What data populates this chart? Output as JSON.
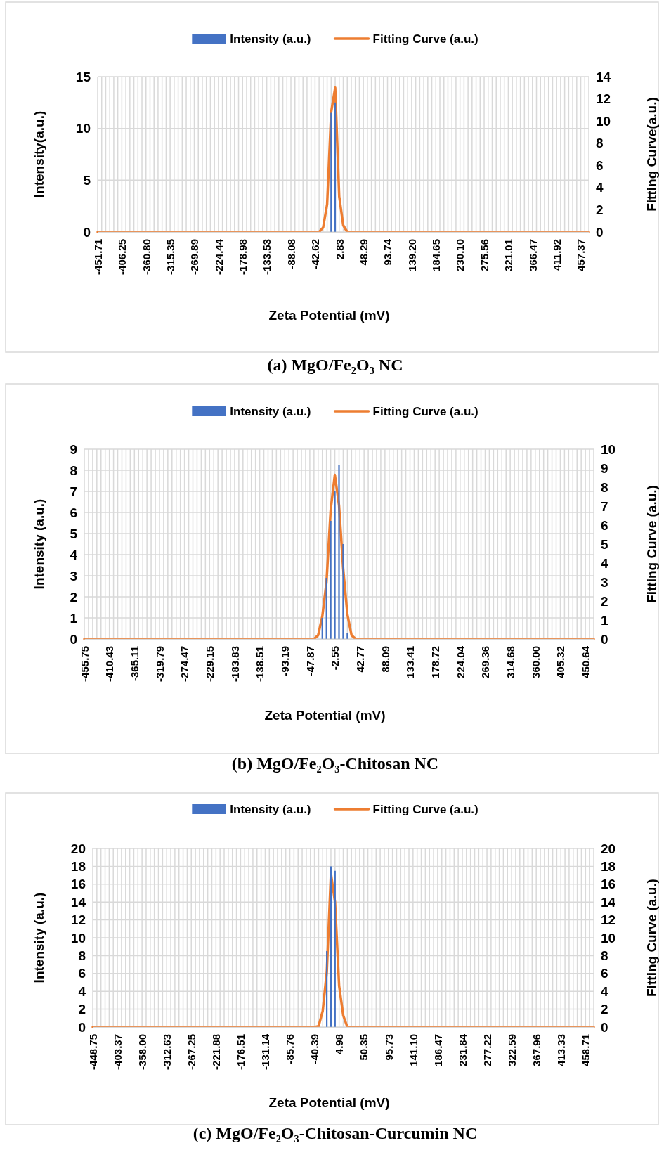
{
  "chart_data": [
    {
      "type": "bar",
      "title": "(a) MgO/Fe₂O₃ NC",
      "xlabel": "Zeta Potential (mV)",
      "ylabel": "Intensity(a.u.)",
      "y2label": "Fitting Curve(a.u.)",
      "categories": [
        "-451.71",
        null,
        null,
        null,
        null,
        null,
        "-406.25",
        null,
        null,
        null,
        null,
        null,
        "-360.80",
        null,
        null,
        null,
        null,
        null,
        "-315.35",
        null,
        null,
        null,
        null,
        null,
        "-269.89",
        null,
        null,
        null,
        null,
        null,
        "-224.44",
        null,
        null,
        null,
        null,
        null,
        "-178.98",
        null,
        null,
        null,
        null,
        null,
        "-133.53",
        null,
        null,
        null,
        null,
        null,
        "-88.08",
        null,
        null,
        null,
        null,
        null,
        "-42.62",
        null,
        null,
        null,
        null,
        null,
        "2.83",
        null,
        null,
        null,
        null,
        null,
        "48.29",
        null,
        null,
        null,
        null,
        null,
        "93.74",
        null,
        null,
        null,
        null,
        null,
        "139.20",
        null,
        null,
        null,
        null,
        null,
        "184.65",
        null,
        null,
        null,
        null,
        null,
        "230.10",
        null,
        null,
        null,
        null,
        null,
        "275.56",
        null,
        null,
        null,
        null,
        null,
        "321.01",
        null,
        null,
        null,
        null,
        null,
        "366.47",
        null,
        null,
        null,
        null,
        null,
        "411.92",
        null,
        null,
        null,
        null,
        null,
        "457.37",
        null,
        null
      ],
      "series": [
        {
          "name": "Intensity (a.u.)",
          "color": "#4472c4",
          "values": [
            0,
            0,
            0,
            0,
            0,
            0,
            0,
            0,
            0,
            0,
            0,
            0,
            0,
            0,
            0,
            0,
            0,
            0,
            0,
            0,
            0,
            0,
            0,
            0,
            0,
            0,
            0,
            0,
            0,
            0,
            0,
            0,
            0,
            0,
            0,
            0,
            0,
            0,
            0,
            0,
            0,
            0,
            0,
            0,
            0,
            0,
            0,
            0,
            0,
            0,
            0,
            0,
            0,
            0,
            0,
            0,
            0,
            0,
            11.5,
            12.5,
            0,
            0,
            0,
            0,
            0,
            0,
            0,
            0,
            0,
            0,
            0,
            0,
            0,
            0,
            0,
            0,
            0,
            0,
            0,
            0,
            0,
            0,
            0,
            0,
            0,
            0,
            0,
            0,
            0,
            0,
            0,
            0,
            0,
            0,
            0,
            0,
            0,
            0,
            0,
            0,
            0,
            0,
            0,
            0,
            0,
            0,
            0,
            0,
            0,
            0,
            0,
            0,
            0,
            0,
            0,
            0,
            0,
            0,
            0,
            0,
            0,
            0,
            0
          ]
        },
        {
          "name": "Fitting Curve (a.u.)",
          "type": "line",
          "axis": "y2",
          "color": "#ed7d31",
          "values": [
            0,
            0,
            0,
            0,
            0,
            0,
            0,
            0,
            0,
            0,
            0,
            0,
            0,
            0,
            0,
            0,
            0,
            0,
            0,
            0,
            0,
            0,
            0,
            0,
            0,
            0,
            0,
            0,
            0,
            0,
            0,
            0,
            0,
            0,
            0,
            0,
            0,
            0,
            0,
            0,
            0,
            0,
            0,
            0,
            0,
            0,
            0,
            0,
            0,
            0,
            0,
            0,
            0,
            0,
            0,
            0,
            0.4,
            2.5,
            10.8,
            13,
            3.2,
            0.6,
            0,
            0,
            0,
            0,
            0,
            0,
            0,
            0,
            0,
            0,
            0,
            0,
            0,
            0,
            0,
            0,
            0,
            0,
            0,
            0,
            0,
            0,
            0,
            0,
            0,
            0,
            0,
            0,
            0,
            0,
            0,
            0,
            0,
            0,
            0,
            0,
            0,
            0,
            0,
            0,
            0,
            0,
            0,
            0,
            0,
            0,
            0,
            0,
            0,
            0,
            0,
            0,
            0,
            0,
            0,
            0,
            0,
            0,
            0,
            0,
            0
          ]
        }
      ],
      "ylim": [
        0,
        15
      ],
      "yticks": [
        0,
        5,
        10,
        15
      ],
      "y2lim": [
        0,
        14
      ],
      "y2ticks": [
        0,
        2,
        4,
        6,
        8,
        10,
        12,
        14
      ],
      "grid": true,
      "legend": "top"
    },
    {
      "type": "bar",
      "title": "(b) MgO/Fe₂O₃-Chitosan NC",
      "xlabel": "Zeta Potential (mV)",
      "ylabel": "Intensity (a.u.)",
      "y2label": "Fitting Curve (a.u.)",
      "categories": [
        "-455.75",
        null,
        null,
        null,
        null,
        null,
        "-410.43",
        null,
        null,
        null,
        null,
        null,
        "-365.11",
        null,
        null,
        null,
        null,
        null,
        "-319.79",
        null,
        null,
        null,
        null,
        null,
        "-274.47",
        null,
        null,
        null,
        null,
        null,
        "-229.15",
        null,
        null,
        null,
        null,
        null,
        "-183.83",
        null,
        null,
        null,
        null,
        null,
        "-138.51",
        null,
        null,
        null,
        null,
        null,
        "-93.19",
        null,
        null,
        null,
        null,
        null,
        "-47.87",
        null,
        null,
        null,
        null,
        null,
        "-2.55",
        null,
        null,
        null,
        null,
        null,
        "42.77",
        null,
        null,
        null,
        null,
        null,
        "88.09",
        null,
        null,
        null,
        null,
        null,
        "133.41",
        null,
        null,
        null,
        null,
        null,
        "178.72",
        null,
        null,
        null,
        null,
        null,
        "224.04",
        null,
        null,
        null,
        null,
        null,
        "269.36",
        null,
        null,
        null,
        null,
        null,
        "314.68",
        null,
        null,
        null,
        null,
        null,
        "360.00",
        null,
        null,
        null,
        null,
        null,
        "405.32",
        null,
        null,
        null,
        null,
        null,
        "450.64",
        null,
        null
      ],
      "series": [
        {
          "name": "Intensity (a.u.)",
          "color": "#4472c4",
          "values": [
            0,
            0,
            0,
            0,
            0,
            0,
            0,
            0,
            0,
            0,
            0,
            0,
            0,
            0,
            0,
            0,
            0,
            0,
            0,
            0,
            0,
            0,
            0,
            0,
            0,
            0,
            0,
            0,
            0,
            0,
            0,
            0,
            0,
            0,
            0,
            0,
            0,
            0,
            0,
            0,
            0,
            0,
            0,
            0,
            0,
            0,
            0,
            0,
            0,
            0,
            0,
            0,
            0,
            0,
            0,
            0,
            0,
            1,
            2.9,
            5.6,
            7,
            8.25,
            4.5,
            0.3,
            0,
            0,
            0,
            0,
            0,
            0,
            0,
            0,
            0,
            0,
            0,
            0,
            0,
            0,
            0,
            0,
            0,
            0,
            0,
            0,
            0,
            0,
            0,
            0,
            0,
            0,
            0,
            0,
            0,
            0,
            0,
            0,
            0,
            0,
            0,
            0,
            0,
            0,
            0,
            0,
            0,
            0,
            0,
            0,
            0,
            0,
            0,
            0,
            0,
            0,
            0,
            0,
            0,
            0,
            0,
            0,
            0,
            0,
            0
          ]
        },
        {
          "name": "Fitting Curve (a.u.)",
          "type": "line",
          "axis": "y2",
          "color": "#ed7d31",
          "values": [
            0,
            0,
            0,
            0,
            0,
            0,
            0,
            0,
            0,
            0,
            0,
            0,
            0,
            0,
            0,
            0,
            0,
            0,
            0,
            0,
            0,
            0,
            0,
            0,
            0,
            0,
            0,
            0,
            0,
            0,
            0,
            0,
            0,
            0,
            0,
            0,
            0,
            0,
            0,
            0,
            0,
            0,
            0,
            0,
            0,
            0,
            0,
            0,
            0,
            0,
            0,
            0,
            0,
            0,
            0,
            0,
            0.2,
            1.2,
            3,
            6.8,
            8.65,
            7.05,
            3.7,
            1.3,
            0.2,
            0,
            0,
            0,
            0,
            0,
            0,
            0,
            0,
            0,
            0,
            0,
            0,
            0,
            0,
            0,
            0,
            0,
            0,
            0,
            0,
            0,
            0,
            0,
            0,
            0,
            0,
            0,
            0,
            0,
            0,
            0,
            0,
            0,
            0,
            0,
            0,
            0,
            0,
            0,
            0,
            0,
            0,
            0,
            0,
            0,
            0,
            0,
            0,
            0,
            0,
            0,
            0,
            0,
            0,
            0,
            0,
            0,
            0
          ]
        }
      ],
      "ylim": [
        0,
        9
      ],
      "yticks": [
        0,
        1,
        2,
        3,
        4,
        5,
        6,
        7,
        8,
        9
      ],
      "y2lim": [
        0,
        10
      ],
      "y2ticks": [
        0,
        1,
        2,
        3,
        4,
        5,
        6,
        7,
        8,
        9,
        10
      ],
      "grid": true,
      "legend": "top"
    },
    {
      "type": "bar",
      "title": "(c) MgO/Fe₂O₃-Chitosan-Curcumin NC",
      "xlabel": "Zeta Potential (mV)",
      "ylabel": "Intensity (a.u.)",
      "y2label": "Fitting Curve (a.u.)",
      "categories": [
        "-448.75",
        null,
        null,
        null,
        null,
        null,
        "-403.37",
        null,
        null,
        null,
        null,
        null,
        "-358.00",
        null,
        null,
        null,
        null,
        null,
        "-312.63",
        null,
        null,
        null,
        null,
        null,
        "-267.25",
        null,
        null,
        null,
        null,
        null,
        "-221.88",
        null,
        null,
        null,
        null,
        null,
        "-176.51",
        null,
        null,
        null,
        null,
        null,
        "-131.14",
        null,
        null,
        null,
        null,
        null,
        "-85.76",
        null,
        null,
        null,
        null,
        null,
        "-40.39",
        null,
        null,
        null,
        null,
        null,
        "4.98",
        null,
        null,
        null,
        null,
        null,
        "50.35",
        null,
        null,
        null,
        null,
        null,
        "95.73",
        null,
        null,
        null,
        null,
        null,
        "141.10",
        null,
        null,
        null,
        null,
        null,
        "186.47",
        null,
        null,
        null,
        null,
        null,
        "231.84",
        null,
        null,
        null,
        null,
        null,
        "277.22",
        null,
        null,
        null,
        null,
        null,
        "322.59",
        null,
        null,
        null,
        null,
        null,
        "367.96",
        null,
        null,
        null,
        null,
        null,
        "413.33",
        null,
        null,
        null,
        null,
        null,
        "458.71",
        null,
        null
      ],
      "series": [
        {
          "name": "Intensity (a.u.)",
          "color": "#4472c4",
          "values": [
            0,
            0,
            0,
            0,
            0,
            0,
            0,
            0,
            0,
            0,
            0,
            0,
            0,
            0,
            0,
            0,
            0,
            0,
            0,
            0,
            0,
            0,
            0,
            0,
            0,
            0,
            0,
            0,
            0,
            0,
            0,
            0,
            0,
            0,
            0,
            0,
            0,
            0,
            0,
            0,
            0,
            0,
            0,
            0,
            0,
            0,
            0,
            0,
            0,
            0,
            0,
            0,
            0,
            0,
            0,
            0,
            0,
            8.5,
            18,
            17.5,
            0,
            0,
            0,
            0,
            0,
            0,
            0,
            0,
            0,
            0,
            0,
            0,
            0,
            0,
            0,
            0,
            0,
            0,
            0,
            0,
            0,
            0,
            0,
            0,
            0,
            0,
            0,
            0,
            0,
            0,
            0,
            0,
            0,
            0,
            0,
            0,
            0,
            0,
            0,
            0,
            0,
            0,
            0,
            0,
            0,
            0,
            0,
            0,
            0,
            0,
            0,
            0,
            0,
            0,
            0,
            0,
            0,
            0,
            0,
            0,
            0,
            0,
            0
          ]
        },
        {
          "name": "Fitting Curve (a.u.)",
          "type": "line",
          "axis": "y2",
          "color": "#ed7d31",
          "values": [
            0,
            0,
            0,
            0,
            0,
            0,
            0,
            0,
            0,
            0,
            0,
            0,
            0,
            0,
            0,
            0,
            0,
            0,
            0,
            0,
            0,
            0,
            0,
            0,
            0,
            0,
            0,
            0,
            0,
            0,
            0,
            0,
            0,
            0,
            0,
            0,
            0,
            0,
            0,
            0,
            0,
            0,
            0,
            0,
            0,
            0,
            0,
            0,
            0,
            0,
            0,
            0,
            0,
            0,
            0,
            0.1,
            1.8,
            6.2,
            17.2,
            14,
            4.6,
            1.3,
            0,
            0,
            0,
            0,
            0,
            0,
            0,
            0,
            0,
            0,
            0,
            0,
            0,
            0,
            0,
            0,
            0,
            0,
            0,
            0,
            0,
            0,
            0,
            0,
            0,
            0,
            0,
            0,
            0,
            0,
            0,
            0,
            0,
            0,
            0,
            0,
            0,
            0,
            0,
            0,
            0,
            0,
            0,
            0,
            0,
            0,
            0,
            0,
            0,
            0,
            0,
            0,
            0,
            0,
            0,
            0,
            0,
            0,
            0,
            0,
            0
          ]
        }
      ],
      "ylim": [
        0,
        20
      ],
      "yticks": [
        0,
        2,
        4,
        6,
        8,
        10,
        12,
        14,
        16,
        18,
        20
      ],
      "y2lim": [
        0,
        20
      ],
      "y2ticks": [
        0,
        2,
        4,
        6,
        8,
        10,
        12,
        14,
        16,
        18,
        20
      ],
      "grid": true,
      "legend": "top"
    }
  ]
}
